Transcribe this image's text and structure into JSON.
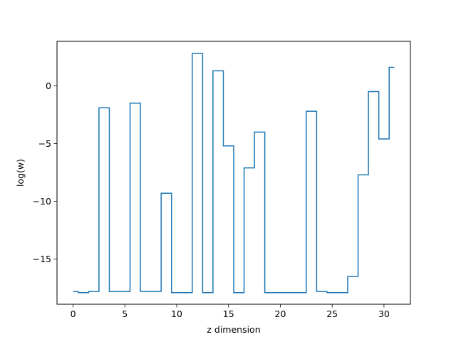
{
  "chart_data": {
    "type": "line",
    "drawstyle": "steps-mid",
    "xlabel": "z dimension",
    "ylabel": "log(w)",
    "xlim": [
      -1.55,
      32.55
    ],
    "ylim": [
      -18.9,
      3.85
    ],
    "xticks": [
      0,
      5,
      10,
      15,
      20,
      25,
      30
    ],
    "xtick_labels": [
      "0",
      "5",
      "10",
      "15",
      "20",
      "25",
      "30"
    ],
    "yticks": [
      -15,
      -10,
      -5,
      0
    ],
    "ytick_labels": [
      "−15",
      "−10",
      "−5",
      "0"
    ],
    "grid": false,
    "series": [
      {
        "color": "#1f77b4",
        "x": [
          0,
          1,
          2,
          3,
          4,
          5,
          6,
          7,
          8,
          9,
          10,
          11,
          12,
          13,
          14,
          15,
          16,
          17,
          18,
          19,
          20,
          21,
          22,
          23,
          24,
          25,
          26,
          27,
          28,
          29,
          30,
          31
        ],
        "y": [
          -17.8,
          -17.9,
          -17.8,
          -1.9,
          -17.8,
          -17.8,
          -1.5,
          -17.8,
          -17.8,
          -9.3,
          -17.9,
          -17.9,
          2.8,
          -17.9,
          1.3,
          -5.2,
          -17.9,
          -7.1,
          -4.0,
          -17.9,
          -17.9,
          -17.9,
          -17.9,
          -2.2,
          -17.8,
          -17.9,
          -17.9,
          -16.5,
          -7.7,
          -0.5,
          -4.6,
          1.6
        ]
      }
    ]
  }
}
